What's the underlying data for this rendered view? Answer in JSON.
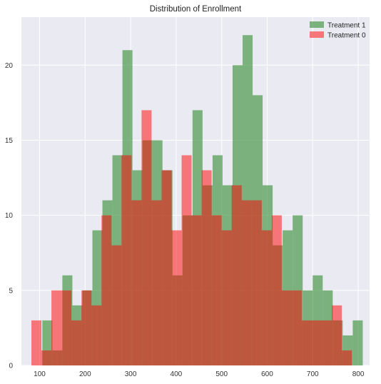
{
  "chart_data": {
    "type": "bar",
    "title": "Distribution of Enrollment",
    "xlabel": "",
    "ylabel": "",
    "xlim": [
      60,
      825
    ],
    "ylim": [
      0,
      23.2
    ],
    "x_ticks": [
      100,
      200,
      300,
      400,
      500,
      600,
      700,
      800
    ],
    "y_ticks": [
      0,
      5,
      10,
      15,
      20
    ],
    "grid": true,
    "legend": {
      "position": "top-right"
    },
    "series": [
      {
        "name": "Treatment 1",
        "color": "#2e8b2e",
        "opacity": 0.6,
        "bins": [
          [
            106,
            128,
            3
          ],
          [
            128,
            150,
            1
          ],
          [
            150,
            172,
            6
          ],
          [
            172,
            194,
            4
          ],
          [
            194,
            216,
            5
          ],
          [
            216,
            238,
            9
          ],
          [
            238,
            260,
            11
          ],
          [
            260,
            282,
            14
          ],
          [
            282,
            304,
            21
          ],
          [
            304,
            326,
            13
          ],
          [
            326,
            348,
            15
          ],
          [
            348,
            370,
            15
          ],
          [
            370,
            392,
            13
          ],
          [
            392,
            414,
            6
          ],
          [
            414,
            436,
            10
          ],
          [
            436,
            458,
            17
          ],
          [
            458,
            480,
            12
          ],
          [
            480,
            502,
            14
          ],
          [
            502,
            524,
            12
          ],
          [
            524,
            546,
            20
          ],
          [
            546,
            568,
            22
          ],
          [
            568,
            590,
            18
          ],
          [
            590,
            612,
            12
          ],
          [
            612,
            634,
            8
          ],
          [
            634,
            656,
            9
          ],
          [
            656,
            678,
            10
          ],
          [
            678,
            700,
            5
          ],
          [
            700,
            722,
            6
          ],
          [
            722,
            744,
            5
          ],
          [
            744,
            766,
            3
          ],
          [
            766,
            788,
            2
          ],
          [
            788,
            810,
            3
          ]
        ]
      },
      {
        "name": "Treatment 0",
        "color": "#ff0000",
        "opacity": 0.5,
        "bins": [
          [
            82,
            104,
            3
          ],
          [
            104,
            126,
            1
          ],
          [
            126,
            148,
            5
          ],
          [
            148,
            170,
            5
          ],
          [
            170,
            192,
            3
          ],
          [
            192,
            214,
            5
          ],
          [
            214,
            236,
            4
          ],
          [
            236,
            258,
            10
          ],
          [
            258,
            280,
            8
          ],
          [
            280,
            302,
            14
          ],
          [
            302,
            324,
            11
          ],
          [
            324,
            346,
            17
          ],
          [
            346,
            368,
            11
          ],
          [
            368,
            390,
            13
          ],
          [
            390,
            412,
            9
          ],
          [
            412,
            434,
            14
          ],
          [
            434,
            456,
            10
          ],
          [
            456,
            478,
            13
          ],
          [
            478,
            500,
            10
          ],
          [
            500,
            522,
            9
          ],
          [
            522,
            544,
            12
          ],
          [
            544,
            566,
            11
          ],
          [
            566,
            588,
            11
          ],
          [
            588,
            610,
            9
          ],
          [
            610,
            632,
            10
          ],
          [
            632,
            654,
            5
          ],
          [
            654,
            676,
            5
          ],
          [
            676,
            698,
            3
          ],
          [
            698,
            720,
            3
          ],
          [
            720,
            742,
            3
          ],
          [
            742,
            764,
            4
          ],
          [
            764,
            786,
            1
          ]
        ]
      }
    ]
  }
}
